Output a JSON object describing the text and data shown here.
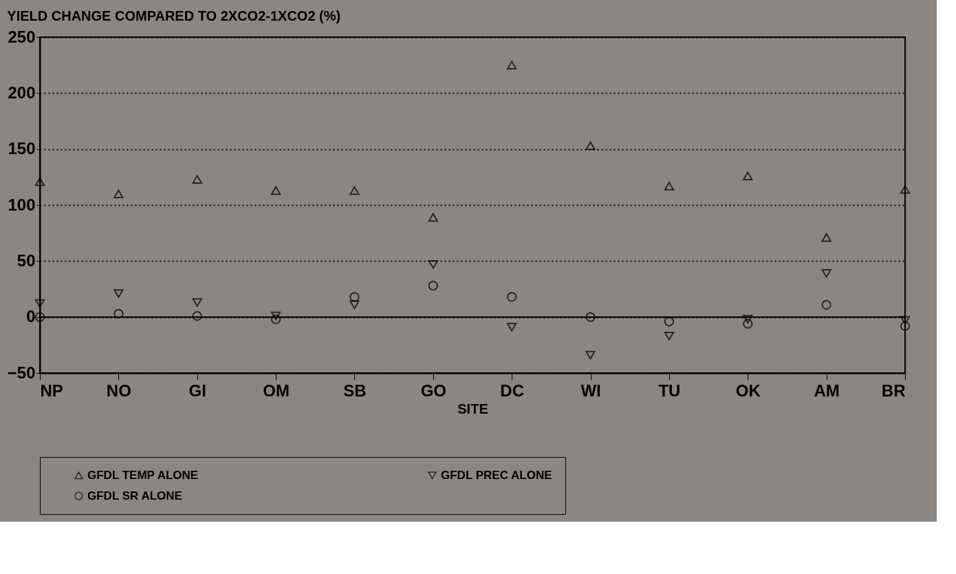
{
  "chart_data": {
    "type": "scatter",
    "title": "YIELD CHANGE COMPARED TO 2XCO2-1XCO2 (%)",
    "xlabel": "SITE",
    "categories": [
      "NP",
      "NO",
      "GI",
      "OM",
      "SB",
      "GO",
      "DC",
      "WI",
      "TU",
      "OK",
      "AM",
      "BR"
    ],
    "series": [
      {
        "name": "GFDL TEMP ALONE",
        "color": "#000000",
        "marker": "triangle",
        "values": [
          121,
          110,
          123,
          113,
          113,
          89,
          225,
          153,
          117,
          126,
          71,
          114
        ]
      },
      {
        "name": "GFDL PREC ALONE",
        "color": "#000000",
        "marker": "triangle-down",
        "values": [
          12,
          21,
          13,
          1,
          11,
          47,
          -9,
          -34,
          -17,
          -2,
          39,
          -3
        ]
      },
      {
        "name": "GFDL SR ALONE",
        "color": "#000000",
        "marker": "circle",
        "values": [
          0,
          3,
          1,
          -2,
          18,
          28,
          18,
          0,
          -4,
          -6,
          11,
          -8
        ]
      }
    ],
    "ylim": [
      -50,
      250
    ],
    "yticks": [
      -50,
      0,
      50,
      100,
      150,
      200,
      250
    ],
    "grid": "y",
    "legend": "bottom",
    "ref_lines": [
      {
        "axis": "y",
        "value": 0,
        "line_style": "solid",
        "color": "#000000"
      }
    ]
  }
}
